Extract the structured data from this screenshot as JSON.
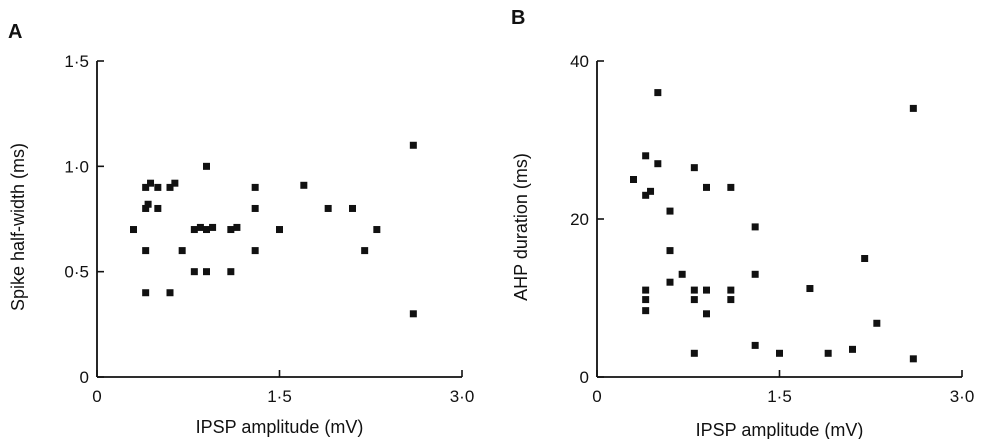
{
  "chart_data": [
    {
      "type": "scatter",
      "panel_label": "A",
      "xlabel": "IPSP amplitude (mV)",
      "ylabel": "Spike half-width (ms)",
      "xlim": [
        0,
        3.0
      ],
      "ylim": [
        0,
        1.5
      ],
      "x_ticks": [
        "0",
        "1·5",
        "3·0"
      ],
      "y_ticks": [
        "0",
        "0·5",
        "1·0",
        "1·5"
      ],
      "x_tick_values": [
        0,
        1.5,
        3.0
      ],
      "y_tick_values": [
        0,
        0.5,
        1.0,
        1.5
      ],
      "grid": false,
      "points": [
        [
          0.3,
          0.7
        ],
        [
          0.4,
          0.4
        ],
        [
          0.4,
          0.6
        ],
        [
          0.4,
          0.8
        ],
        [
          0.4,
          0.9
        ],
        [
          0.42,
          0.82
        ],
        [
          0.44,
          0.92
        ],
        [
          0.5,
          0.8
        ],
        [
          0.5,
          0.9
        ],
        [
          0.6,
          0.4
        ],
        [
          0.6,
          0.9
        ],
        [
          0.64,
          0.92
        ],
        [
          0.7,
          0.6
        ],
        [
          0.8,
          0.5
        ],
        [
          0.8,
          0.7
        ],
        [
          0.85,
          0.71
        ],
        [
          0.9,
          0.5
        ],
        [
          0.9,
          0.7
        ],
        [
          0.9,
          1.0
        ],
        [
          0.95,
          0.71
        ],
        [
          1.1,
          0.5
        ],
        [
          1.1,
          0.7
        ],
        [
          1.15,
          0.71
        ],
        [
          1.3,
          0.6
        ],
        [
          1.3,
          0.8
        ],
        [
          1.3,
          0.9
        ],
        [
          1.5,
          0.7
        ],
        [
          1.7,
          0.91
        ],
        [
          1.9,
          0.8
        ],
        [
          2.1,
          0.8
        ],
        [
          2.2,
          0.6
        ],
        [
          2.3,
          0.7
        ],
        [
          2.6,
          1.1
        ],
        [
          2.6,
          0.3
        ]
      ]
    },
    {
      "type": "scatter",
      "panel_label": "B",
      "xlabel": "IPSP amplitude (mV)",
      "ylabel": "AHP duration (ms)",
      "xlim": [
        0,
        3.0
      ],
      "ylim": [
        0,
        40
      ],
      "x_ticks": [
        "0",
        "1·5",
        "3·0"
      ],
      "y_ticks": [
        "0",
        "20",
        "40"
      ],
      "x_tick_values": [
        0,
        1.5,
        3.0
      ],
      "y_tick_values": [
        0,
        20,
        40
      ],
      "grid": false,
      "points": [
        [
          0.3,
          25
        ],
        [
          0.4,
          28
        ],
        [
          0.4,
          23
        ],
        [
          0.44,
          23.5
        ],
        [
          0.5,
          36
        ],
        [
          0.5,
          27
        ],
        [
          0.4,
          11
        ],
        [
          0.4,
          9.8
        ],
        [
          0.4,
          8.4
        ],
        [
          0.6,
          21
        ],
        [
          0.6,
          16
        ],
        [
          0.6,
          12
        ],
        [
          0.7,
          13
        ],
        [
          0.8,
          26.5
        ],
        [
          0.8,
          11
        ],
        [
          0.8,
          9.8
        ],
        [
          0.8,
          3
        ],
        [
          0.9,
          24
        ],
        [
          0.9,
          11
        ],
        [
          0.9,
          8
        ],
        [
          1.1,
          24
        ],
        [
          1.1,
          11
        ],
        [
          1.1,
          9.8
        ],
        [
          1.3,
          19
        ],
        [
          1.3,
          13
        ],
        [
          1.3,
          4
        ],
        [
          1.5,
          3
        ],
        [
          1.75,
          11.2
        ],
        [
          1.9,
          3
        ],
        [
          2.1,
          3.5
        ],
        [
          2.2,
          15
        ],
        [
          2.3,
          6.8
        ],
        [
          2.6,
          34
        ],
        [
          2.6,
          2.3
        ]
      ]
    }
  ]
}
